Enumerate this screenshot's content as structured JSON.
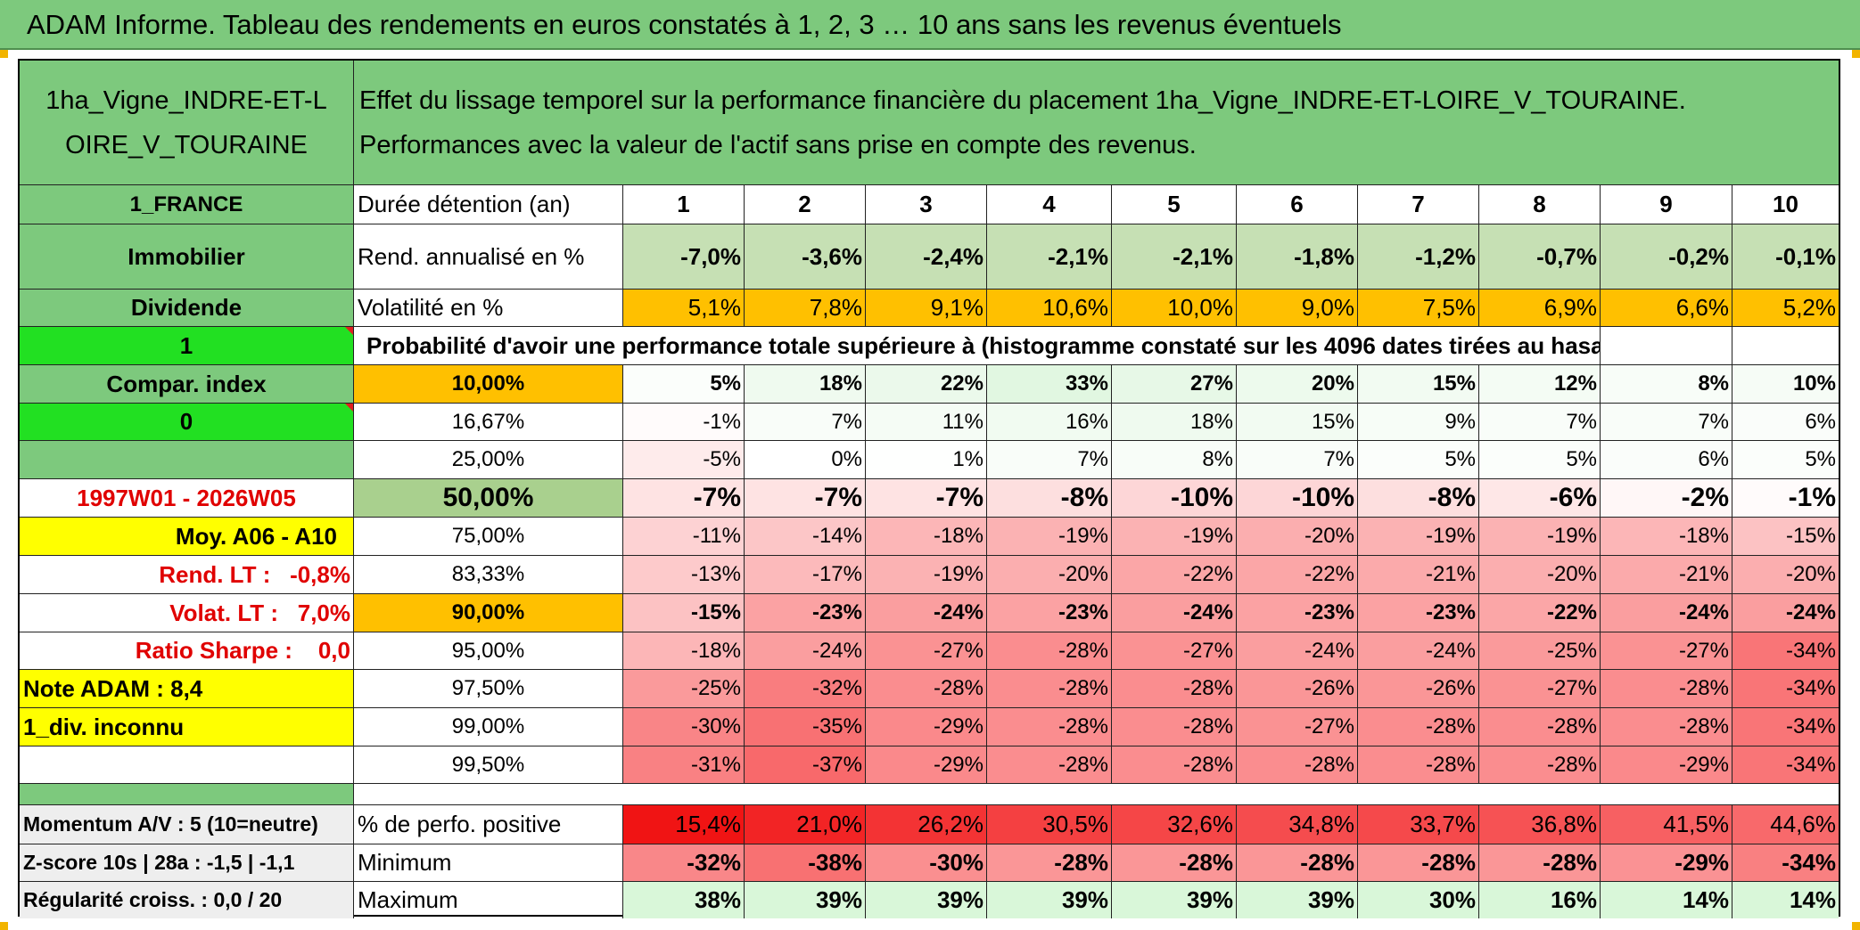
{
  "header": {
    "title": "ADAM Informe. Tableau des rendements en euros constatés à 1, 2, 3 … 10 ans sans les revenus éventuels"
  },
  "sidebar": {
    "asset_name": "1ha_Vigne_INDRE-ET-LOIRE_V_TOURAINE",
    "country": "1_FRANCE",
    "category": "Immobilier",
    "income_type": "Dividende",
    "selector_1": "1",
    "compar_index": "Compar. index",
    "selector_2": "0",
    "period": "1997W01 - 2026W05",
    "avg_label": "Moy. A06 - A10",
    "rend_lt": "Rend. LT :   -0,8%",
    "volat_lt": "Volat. LT :   7,0%",
    "sharpe": "Ratio Sharpe :    0,0",
    "note_adam": "Note ADAM : 8,4",
    "div_info": "1_div. inconnu",
    "momentum": "Momentum A/V : 5 (10=neutre)",
    "zscore": "Z-score 10s | 28a : -1,5 | -1,1",
    "regularite": "Régularité croiss. : 0,0 / 20"
  },
  "main": {
    "description": "Effet du lissage temporel sur la performance financière du placement 1ha_Vigne_INDRE-ET-LOIRE_V_TOURAINE. Performances avec la valeur de l'actif sans prise en compte des revenus.",
    "duration_label": "Durée détention (an)",
    "years": [
      "1",
      "2",
      "3",
      "4",
      "5",
      "6",
      "7",
      "8",
      "9",
      "10"
    ],
    "rend_label": "Rend. annualisé en %",
    "rend_values": [
      "-7,0%",
      "-3,6%",
      "-2,4%",
      "-2,1%",
      "-2,1%",
      "-1,8%",
      "-1,2%",
      "-0,7%",
      "-0,2%",
      "-0,1%"
    ],
    "volat_label": "Volatilité en %",
    "volat_values": [
      "5,1%",
      "7,8%",
      "9,1%",
      "10,6%",
      "10,0%",
      "9,0%",
      "7,5%",
      "6,9%",
      "6,6%",
      "5,2%"
    ],
    "prob_title": "Probabilité d'avoir une performance totale supérieure à (histogramme constaté sur les 4096 dates tirées au hasard)",
    "quantile_rows": [
      {
        "label": "10,00%",
        "values": [
          "5%",
          "18%",
          "22%",
          "33%",
          "27%",
          "20%",
          "15%",
          "12%",
          "8%",
          "10%"
        ]
      },
      {
        "label": "16,67%",
        "values": [
          "-1%",
          "7%",
          "11%",
          "16%",
          "18%",
          "15%",
          "9%",
          "7%",
          "7%",
          "6%"
        ]
      },
      {
        "label": "25,00%",
        "values": [
          "-5%",
          "0%",
          "1%",
          "7%",
          "8%",
          "7%",
          "5%",
          "5%",
          "6%",
          "5%"
        ]
      },
      {
        "label": "50,00%",
        "values": [
          "-7%",
          "-7%",
          "-7%",
          "-8%",
          "-10%",
          "-10%",
          "-8%",
          "-6%",
          "-2%",
          "-1%"
        ]
      },
      {
        "label": "75,00%",
        "values": [
          "-11%",
          "-14%",
          "-18%",
          "-19%",
          "-19%",
          "-20%",
          "-19%",
          "-19%",
          "-18%",
          "-15%"
        ]
      },
      {
        "label": "83,33%",
        "values": [
          "-13%",
          "-17%",
          "-19%",
          "-20%",
          "-22%",
          "-22%",
          "-21%",
          "-20%",
          "-21%",
          "-20%"
        ]
      },
      {
        "label": "90,00%",
        "values": [
          "-15%",
          "-23%",
          "-24%",
          "-23%",
          "-24%",
          "-23%",
          "-23%",
          "-22%",
          "-24%",
          "-24%"
        ]
      },
      {
        "label": "95,00%",
        "values": [
          "-18%",
          "-24%",
          "-27%",
          "-28%",
          "-27%",
          "-24%",
          "-24%",
          "-25%",
          "-27%",
          "-34%"
        ]
      },
      {
        "label": "97,50%",
        "values": [
          "-25%",
          "-32%",
          "-28%",
          "-28%",
          "-28%",
          "-26%",
          "-26%",
          "-27%",
          "-28%",
          "-34%"
        ]
      },
      {
        "label": "99,00%",
        "values": [
          "-30%",
          "-35%",
          "-29%",
          "-28%",
          "-28%",
          "-27%",
          "-28%",
          "-28%",
          "-28%",
          "-34%"
        ]
      },
      {
        "label": "99,50%",
        "values": [
          "-31%",
          "-37%",
          "-29%",
          "-28%",
          "-28%",
          "-28%",
          "-28%",
          "-28%",
          "-29%",
          "-34%"
        ]
      }
    ],
    "positive_label": "% de perfo. positive",
    "positive_values": [
      "15,4%",
      "21,0%",
      "26,2%",
      "30,5%",
      "32,6%",
      "34,8%",
      "33,7%",
      "36,8%",
      "41,5%",
      "44,6%"
    ],
    "min_label": "Minimum",
    "min_values": [
      "-32%",
      "-38%",
      "-30%",
      "-28%",
      "-28%",
      "-28%",
      "-28%",
      "-28%",
      "-29%",
      "-34%"
    ],
    "max_label": "Maximum",
    "max_values": [
      "38%",
      "39%",
      "39%",
      "39%",
      "39%",
      "39%",
      "30%",
      "16%",
      "14%",
      "14%"
    ]
  },
  "colors": {
    "banner": "#7dc97d",
    "label_green": "#7dc97d",
    "selector_green": "#22e022",
    "rend_fill": "#c6e0b4",
    "volat_fill": "#ffc000",
    "highlight_yellow": "#ffff00",
    "red_text": "#e00000",
    "median_fill": "#a9d08e",
    "positive_fill": "#f8696b",
    "max_fill": "#d9f7d9",
    "corner_accent": "#f2b400"
  }
}
